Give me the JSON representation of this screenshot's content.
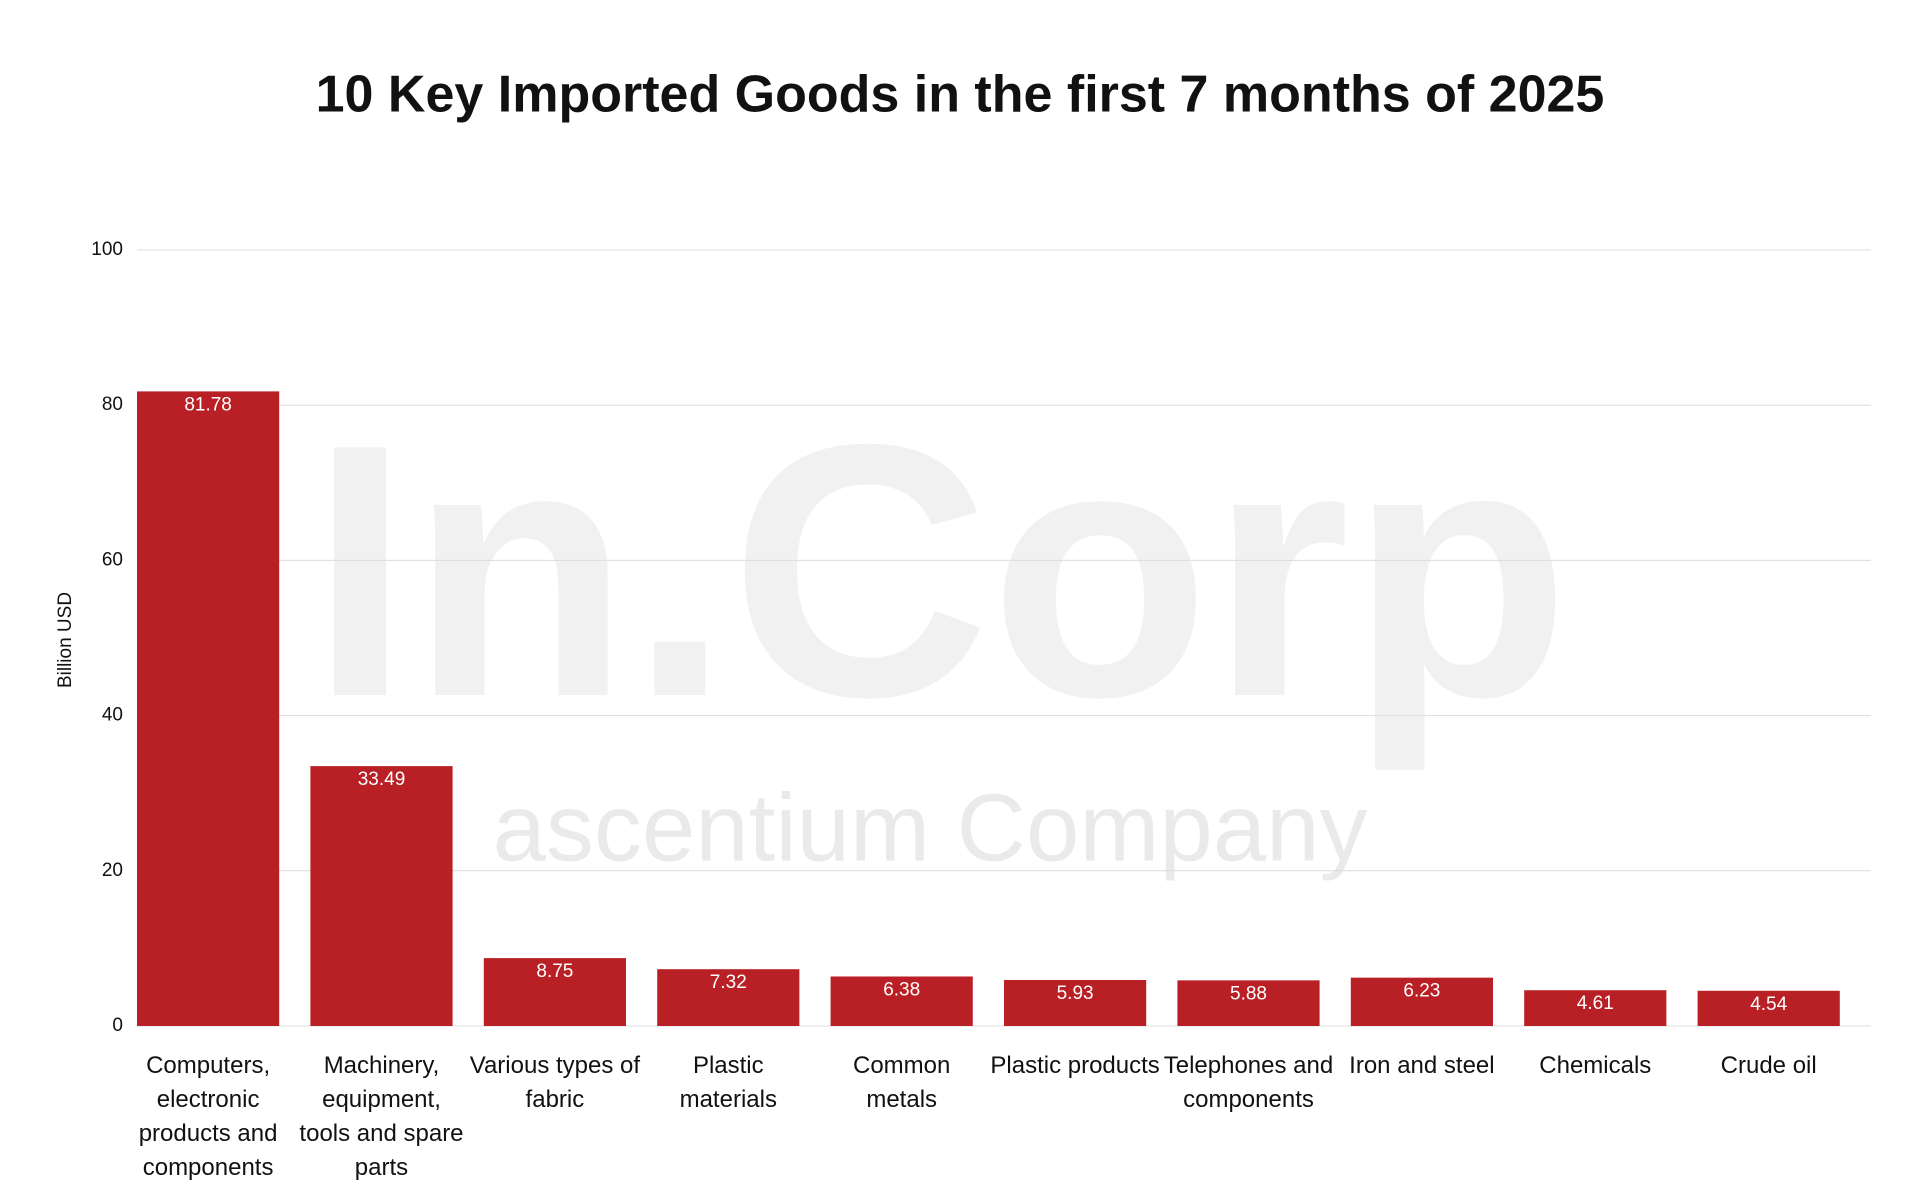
{
  "chart_data": {
    "type": "bar",
    "title": "10 Key Imported Goods in the first 7 months of 2025",
    "y_label": "Billion USD",
    "categories": [
      "Computers, electronic products and components",
      "Machinery, equipment, tools and spare parts",
      "Various types of fabric",
      "Plastic materials",
      "Common metals",
      "Plastic products",
      "Telephones and components",
      "Iron and steel",
      "Chemicals",
      "Crude oil"
    ],
    "values": [
      81.78,
      33.49,
      8.75,
      7.32,
      6.38,
      5.93,
      5.88,
      6.23,
      4.61,
      4.54
    ],
    "color": "#b92025",
    "ylim": [
      0,
      100
    ],
    "yticks": [
      0,
      20,
      40,
      60,
      80,
      100
    ],
    "grid": true,
    "watermark": [
      "In.Corp",
      "ascentium Company"
    ]
  }
}
